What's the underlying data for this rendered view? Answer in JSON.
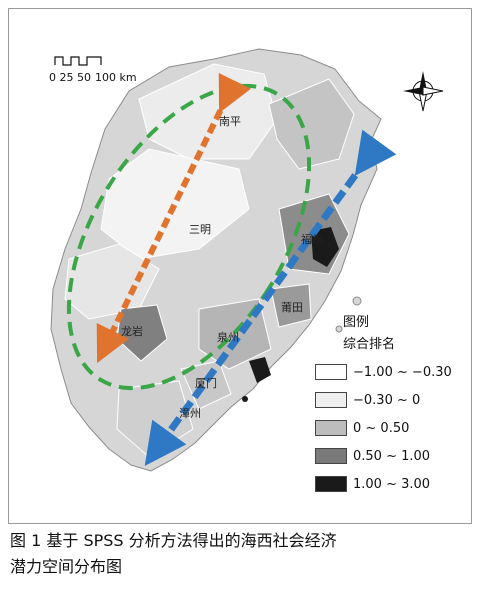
{
  "map": {
    "scale_bar": {
      "ticks": "0 25 50",
      "end": "100 km"
    },
    "cities": {
      "nanping": "南平",
      "sanming": "三明",
      "fuzhou": "福州",
      "putian": "莆田",
      "longyan": "龙岩",
      "quanzhou": "泉州",
      "xiamen": "厦门",
      "zhangzhou": "漳州"
    },
    "legend": {
      "title": "图例",
      "subtitle": "综合排名",
      "items": [
        {
          "range": "−1.00 ~ −0.30",
          "color": "#ffffff"
        },
        {
          "range": "−0.30 ~ 0",
          "color": "#efefef"
        },
        {
          "range": "0 ~ 0.50",
          "color": "#bdbdbd"
        },
        {
          "range": "0.50 ~ 1.00",
          "color": "#7a7a7a"
        },
        {
          "range": "1.00 ~ 3.00",
          "color": "#1a1a1a"
        }
      ]
    },
    "colors": {
      "inland_ellipse": "#3aa648",
      "orange_axis": "#e0742f",
      "blue_axis": "#2f79c4"
    },
    "icons": [
      "north-arrow-icon"
    ]
  },
  "caption": {
    "line1": "图 1  基于 SPSS 分析方法得出的海西社会经济",
    "line2": "潜力空间分布图"
  }
}
